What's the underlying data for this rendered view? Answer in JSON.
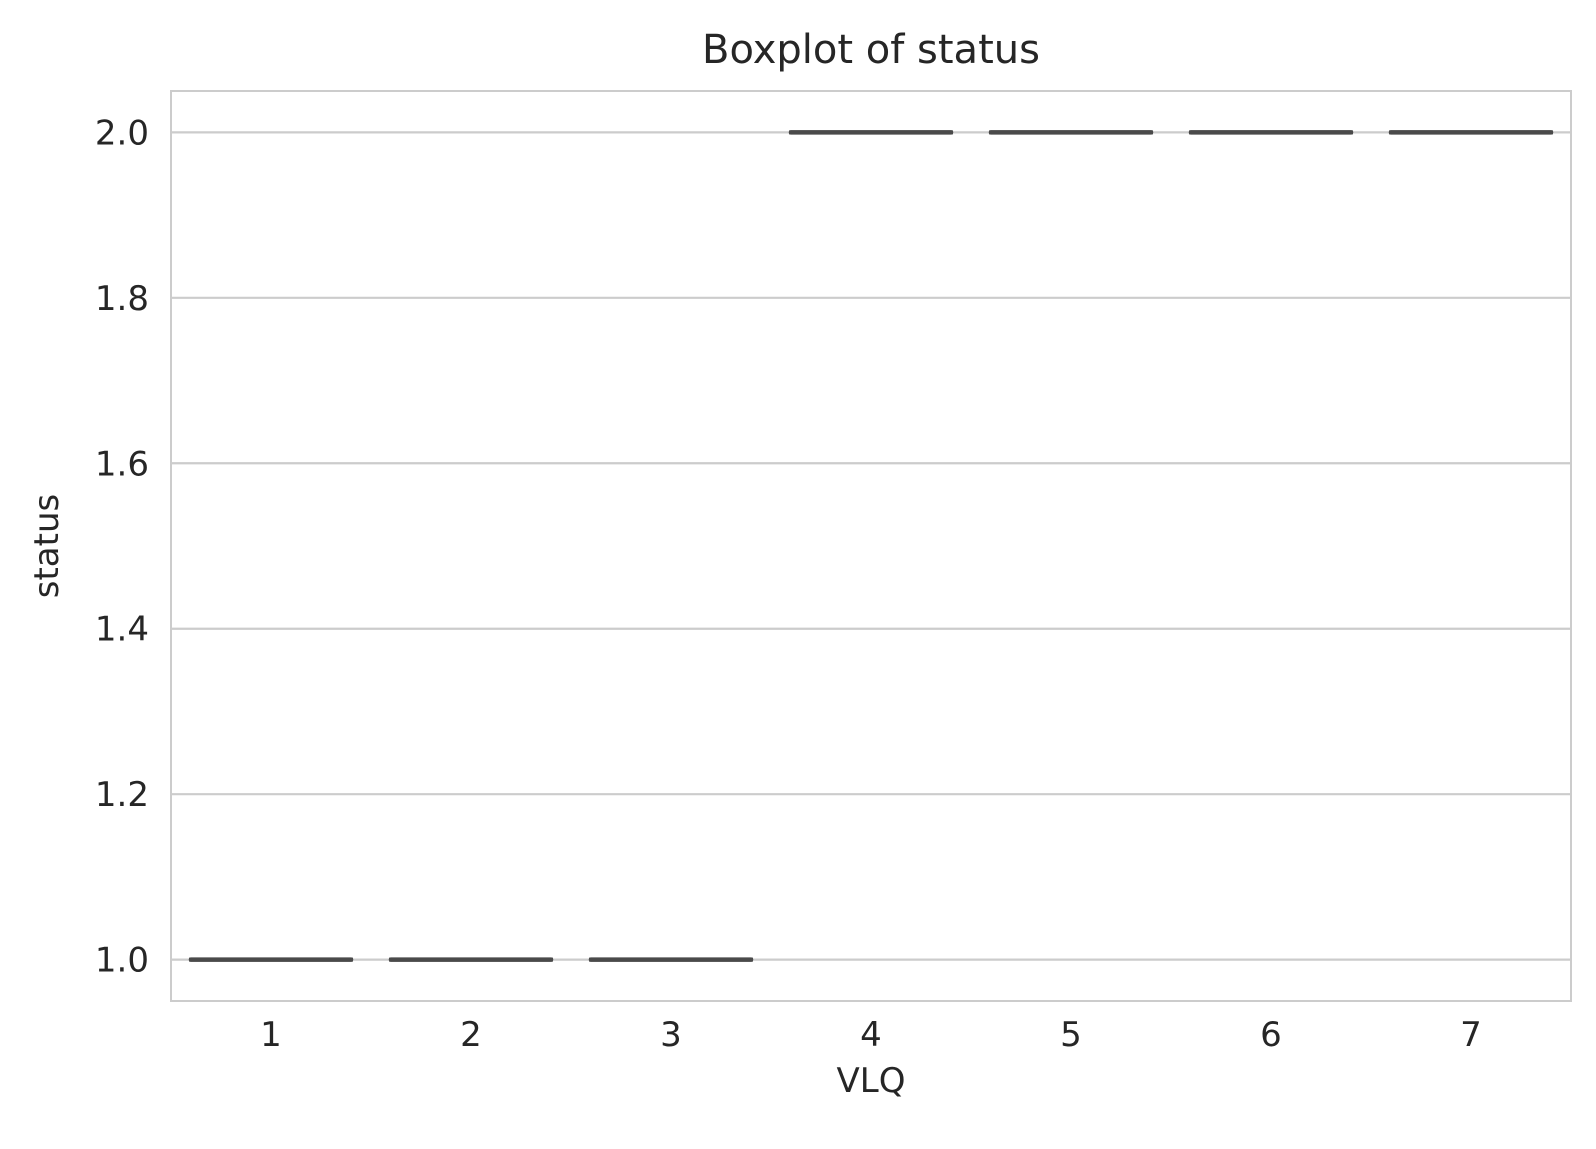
{
  "chart_data": {
    "type": "box",
    "title": "Boxplot of status",
    "xlabel": "VLQ",
    "ylabel": "status",
    "categories": [
      "1",
      "2",
      "3",
      "4",
      "5",
      "6",
      "7"
    ],
    "boxes": [
      {
        "category": "1",
        "min": 1.0,
        "q1": 1.0,
        "median": 1.0,
        "q3": 1.0,
        "max": 1.0
      },
      {
        "category": "2",
        "min": 1.0,
        "q1": 1.0,
        "median": 1.0,
        "q3": 1.0,
        "max": 1.0
      },
      {
        "category": "3",
        "min": 1.0,
        "q1": 1.0,
        "median": 1.0,
        "q3": 1.0,
        "max": 1.0
      },
      {
        "category": "4",
        "min": 2.0,
        "q1": 2.0,
        "median": 2.0,
        "q3": 2.0,
        "max": 2.0
      },
      {
        "category": "5",
        "min": 2.0,
        "q1": 2.0,
        "median": 2.0,
        "q3": 2.0,
        "max": 2.0
      },
      {
        "category": "6",
        "min": 2.0,
        "q1": 2.0,
        "median": 2.0,
        "q3": 2.0,
        "max": 2.0
      },
      {
        "category": "7",
        "min": 2.0,
        "q1": 2.0,
        "median": 2.0,
        "q3": 2.0,
        "max": 2.0
      }
    ],
    "yticks": [
      "1.0",
      "1.2",
      "1.4",
      "1.6",
      "1.8",
      "2.0"
    ],
    "ylim": [
      0.95,
      2.05
    ],
    "grid": "horizontal",
    "colors": {
      "box_line": "#4a4a4a",
      "grid": "#cccccc",
      "frame": "#cccccc",
      "text": "#262626"
    }
  }
}
